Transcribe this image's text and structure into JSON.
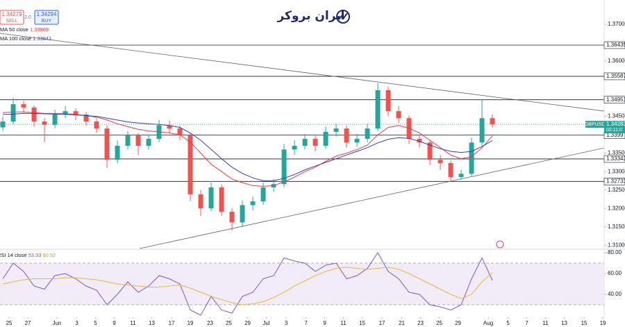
{
  "header": {
    "sell_price": 1.34279,
    "sell_label": "SELL",
    "spread": {
      "value": 2,
      "label": "2.0"
    },
    "buy_price": 1.34294,
    "buy_label": "BUY",
    "logo": "ایران بروکر"
  },
  "chart_data": [
    {
      "type": "candlestick",
      "symbol": "GBPUSD",
      "countdown": "02:11:0",
      "up_color": "#26a69a",
      "down_color": "#ef5350",
      "xlim": [
        -0.27,
        57.73
      ],
      "ylim": [
        1.3091,
        1.3766
      ],
      "yticks": [
        {
          "value": 1.37,
          "label": "1.37000"
        },
        {
          "value": 1.36,
          "label": "1.36000"
        },
        {
          "value": 1.345,
          "label": "1.34500"
        },
        {
          "value": 1.335,
          "label": "1.33500"
        },
        {
          "value": 1.33,
          "label": "1.33000"
        },
        {
          "value": 1.325,
          "label": "1.32500"
        },
        {
          "value": 1.32,
          "label": "1.32000"
        },
        {
          "value": 1.315,
          "label": "1.31500"
        },
        {
          "value": 1.31,
          "label": "1.31000"
        }
      ],
      "xticks": [
        {
          "value": 0.6,
          "label": "25"
        },
        {
          "value": 2.4,
          "label": "27"
        },
        {
          "value": 5.2,
          "label": "Jun"
        },
        {
          "value": 7.1,
          "label": "3"
        },
        {
          "value": 8.9,
          "label": "5"
        },
        {
          "value": 10.7,
          "label": "9"
        },
        {
          "value": 12.5,
          "label": "11"
        },
        {
          "value": 14.3,
          "label": "13"
        },
        {
          "value": 16.2,
          "label": "17"
        },
        {
          "value": 18,
          "label": "19"
        },
        {
          "value": 19.9,
          "label": "23"
        },
        {
          "value": 21.7,
          "label": "25"
        },
        {
          "value": 23.5,
          "label": "29"
        },
        {
          "value": 25.3,
          "label": "Jul"
        },
        {
          "value": 27.2,
          "label": "3"
        },
        {
          "value": 29.1,
          "label": "7"
        },
        {
          "value": 30.9,
          "label": "9"
        },
        {
          "value": 32.7,
          "label": "11"
        },
        {
          "value": 34.5,
          "label": "15"
        },
        {
          "value": 36.4,
          "label": "17"
        },
        {
          "value": 38.3,
          "label": "21"
        },
        {
          "value": 40.1,
          "label": "23"
        },
        {
          "value": 41.9,
          "label": "25"
        },
        {
          "value": 43.7,
          "label": "29"
        },
        {
          "value": 46.6,
          "label": "Aug"
        },
        {
          "value": 48.5,
          "label": "5"
        },
        {
          "value": 50.3,
          "label": "7"
        },
        {
          "value": 52.1,
          "label": "11"
        },
        {
          "value": 53.9,
          "label": "13"
        },
        {
          "value": 55.8,
          "label": "15"
        },
        {
          "value": 57.6,
          "label": "19"
        }
      ],
      "ohlc": [
        [
          1.342,
          1.345,
          1.341,
          1.3436
        ],
        [
          1.3436,
          1.35,
          1.3428,
          1.3483
        ],
        [
          1.3483,
          1.3492,
          1.346,
          1.3474
        ],
        [
          1.3474,
          1.348,
          1.3422,
          1.3436
        ],
        [
          1.3436,
          1.3445,
          1.338,
          1.3427
        ],
        [
          1.3427,
          1.3468,
          1.3418,
          1.3455
        ],
        [
          1.3455,
          1.3478,
          1.3445,
          1.3464
        ],
        [
          1.3464,
          1.3472,
          1.344,
          1.3455
        ],
        [
          1.3455,
          1.3462,
          1.3425,
          1.3436
        ],
        [
          1.3436,
          1.3445,
          1.3405,
          1.3417
        ],
        [
          1.3417,
          1.3425,
          1.331,
          1.3332
        ],
        [
          1.3332,
          1.3385,
          1.3322,
          1.337
        ],
        [
          1.337,
          1.341,
          1.336,
          1.3398
        ],
        [
          1.3398,
          1.3405,
          1.3345,
          1.337
        ],
        [
          1.337,
          1.34,
          1.336,
          1.3389
        ],
        [
          1.3389,
          1.344,
          1.338,
          1.3426
        ],
        [
          1.3426,
          1.3438,
          1.3405,
          1.3417
        ],
        [
          1.3417,
          1.3425,
          1.3385,
          1.3398
        ],
        [
          1.3398,
          1.3405,
          1.322,
          1.3238
        ],
        [
          1.3238,
          1.325,
          1.318,
          1.32
        ],
        [
          1.32,
          1.327,
          1.3192,
          1.3257
        ],
        [
          1.3257,
          1.3265,
          1.318,
          1.3191
        ],
        [
          1.3191,
          1.32,
          1.314,
          1.3162
        ],
        [
          1.3162,
          1.3222,
          1.315,
          1.3209
        ],
        [
          1.3209,
          1.3232,
          1.3195,
          1.3219
        ],
        [
          1.3219,
          1.327,
          1.321,
          1.3257
        ],
        [
          1.3257,
          1.328,
          1.3245,
          1.3266
        ],
        [
          1.3266,
          1.3375,
          1.3258,
          1.336
        ],
        [
          1.336,
          1.3385,
          1.3345,
          1.337
        ],
        [
          1.337,
          1.3402,
          1.336,
          1.3389
        ],
        [
          1.3389,
          1.3398,
          1.3355,
          1.337
        ],
        [
          1.337,
          1.3422,
          1.3362,
          1.3408
        ],
        [
          1.3408,
          1.343,
          1.3395,
          1.3417
        ],
        [
          1.3417,
          1.3425,
          1.3365,
          1.3379
        ],
        [
          1.3379,
          1.3402,
          1.3368,
          1.3389
        ],
        [
          1.3389,
          1.343,
          1.338,
          1.3417
        ],
        [
          1.3417,
          1.354,
          1.341,
          1.3521
        ],
        [
          1.3521,
          1.353,
          1.345,
          1.3464
        ],
        [
          1.3464,
          1.3478,
          1.3432,
          1.3445
        ],
        [
          1.3445,
          1.3452,
          1.3375,
          1.3389
        ],
        [
          1.3389,
          1.3398,
          1.3365,
          1.3379
        ],
        [
          1.3379,
          1.3385,
          1.3318,
          1.3332
        ],
        [
          1.3332,
          1.3345,
          1.3305,
          1.3323
        ],
        [
          1.3323,
          1.333,
          1.3275,
          1.3285
        ],
        [
          1.3285,
          1.3305,
          1.3278,
          1.3294
        ],
        [
          1.3294,
          1.3392,
          1.3288,
          1.3379
        ],
        [
          1.3379,
          1.3495,
          1.337,
          1.3445
        ],
        [
          1.3445,
          1.3455,
          1.342,
          1.34283
        ]
      ],
      "series": [
        {
          "name": "MA 50 close",
          "color": "#f23645",
          "values": [
            1.346,
            1.3462,
            1.3462,
            1.346,
            1.3458,
            1.3458,
            1.3458,
            1.3455,
            1.3452,
            1.3448,
            1.344,
            1.343,
            1.3422,
            1.3415,
            1.341,
            1.3408,
            1.3405,
            1.34,
            1.338,
            1.335,
            1.332,
            1.33,
            1.328,
            1.327,
            1.3262,
            1.326,
            1.3262,
            1.3272,
            1.3285,
            1.33,
            1.3312,
            1.3328,
            1.3342,
            1.335,
            1.336,
            1.3372,
            1.34,
            1.342,
            1.3425,
            1.3418,
            1.3405,
            1.3385,
            1.3365,
            1.3345,
            1.3335,
            1.334,
            1.3365,
            1.33969
          ]
        },
        {
          "name": "MA 100 close",
          "color": "#2f3fbf",
          "values": [
            1.3455,
            1.3456,
            1.3458,
            1.3458,
            1.3457,
            1.3456,
            1.3455,
            1.3454,
            1.3452,
            1.345,
            1.3445,
            1.344,
            1.3435,
            1.3432,
            1.343,
            1.3428,
            1.3425,
            1.342,
            1.3405,
            1.3385,
            1.336,
            1.3335,
            1.3312,
            1.3295,
            1.3283,
            1.3275,
            1.3275,
            1.3282,
            1.3292,
            1.3305,
            1.3315,
            1.3325,
            1.3335,
            1.3345,
            1.3355,
            1.3365,
            1.3378,
            1.3388,
            1.3392,
            1.339,
            1.3382,
            1.3372,
            1.3362,
            1.3355,
            1.3352,
            1.3355,
            1.3368,
            1.33841
          ]
        }
      ],
      "levels": [
        1.36435,
        1.35587,
        1.34951,
        1.3399,
        1.33343,
        1.32733
      ],
      "trendlines": [
        {
          "x": [
            -0.27,
            57.73
          ],
          "y": [
            1.36755,
            1.34642
          ]
        },
        {
          "x": [
            13.07,
            57.73
          ],
          "y": [
            1.30906,
            1.33642
          ]
        }
      ]
    },
    {
      "type": "line",
      "title": "RSI 14 close",
      "ylim": [
        19.33,
        82.67
      ],
      "band": [
        30,
        70
      ],
      "yticks": [
        {
          "value": 80,
          "label": "80.00"
        },
        {
          "value": 60,
          "label": "60.00"
        },
        {
          "value": 40,
          "label": "40.00"
        }
      ],
      "series": [
        {
          "color": "#7e57c2",
          "values": [
            55,
            70,
            62,
            48,
            45,
            58,
            60,
            55,
            48,
            44,
            30,
            40,
            52,
            42,
            48,
            58,
            55,
            50,
            25,
            20,
            38,
            25,
            22,
            38,
            42,
            55,
            58,
            75,
            72,
            70,
            62,
            68,
            70,
            55,
            58,
            65,
            80,
            62,
            55,
            42,
            40,
            30,
            28,
            25,
            30,
            55,
            75,
            53.33
          ]
        },
        {
          "color": "#e8b93a",
          "values": [
            50,
            52,
            54,
            55,
            55,
            55,
            56,
            56,
            55,
            54,
            52,
            50,
            49,
            48,
            47,
            47,
            48,
            49,
            46,
            42,
            38,
            35,
            32,
            30,
            31,
            33,
            37,
            42,
            48,
            53,
            58,
            62,
            65,
            66,
            65,
            64,
            65,
            66,
            64,
            60,
            55,
            50,
            45,
            40,
            36,
            40,
            52,
            60.92
          ]
        }
      ]
    }
  ]
}
